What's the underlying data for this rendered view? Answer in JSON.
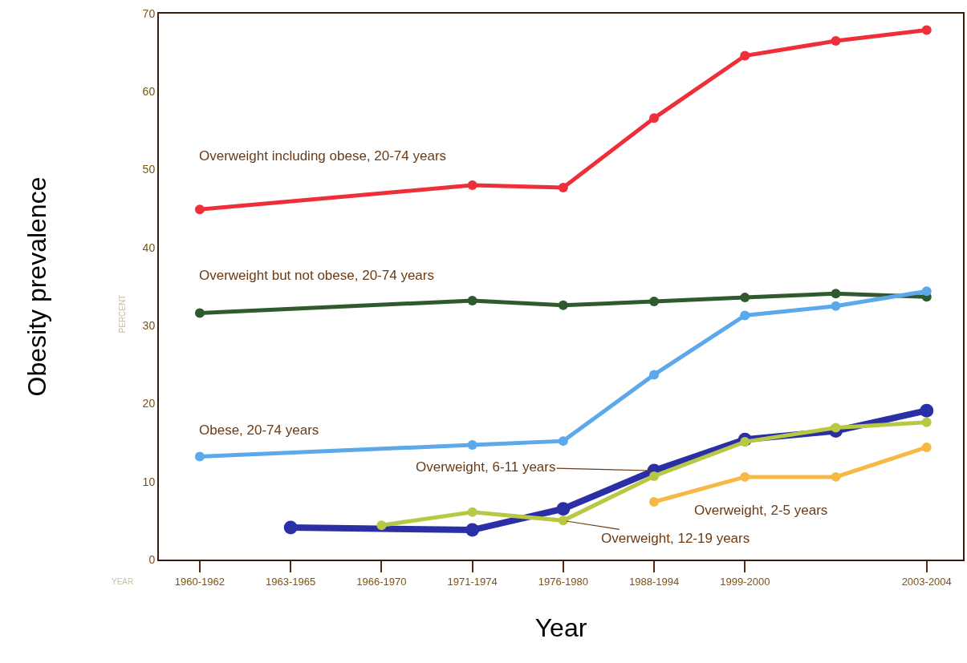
{
  "chart_data": {
    "type": "line",
    "xlabel": "Year",
    "ylabel": "Obesity prevalence",
    "annotations": [
      "PERCENT",
      "YEAR"
    ],
    "categories": [
      "1960-1962",
      "1963-1965",
      "1966-1970",
      "1971-1974",
      "1976-1980",
      "1988-1994",
      "1999-2000",
      null,
      "2003-2004"
    ],
    "ylim": [
      0,
      70
    ],
    "yticks": [
      0,
      10,
      20,
      30,
      40,
      50,
      60,
      70
    ],
    "grid": false,
    "legend": false,
    "marker": "circle",
    "line_style": "solid",
    "series": [
      {
        "name": "Overweight including obese, 20-74 years",
        "color": "#ee2f3a",
        "values": [
          44.9,
          null,
          null,
          48.0,
          47.7,
          56.6,
          64.6,
          66.5,
          67.9
        ]
      },
      {
        "name": "Overweight but not obese, 20-74 years",
        "color": "#2f5a2e",
        "values": [
          31.6,
          null,
          null,
          33.2,
          32.6,
          33.1,
          33.6,
          34.1,
          33.7
        ]
      },
      {
        "name": "Obese, 20-74 years",
        "color": "#5ba8ea",
        "values": [
          13.2,
          null,
          null,
          14.7,
          15.2,
          23.7,
          31.3,
          32.5,
          34.4
        ]
      },
      {
        "name": "Overweight, 6-11 years",
        "color": "#2a2fa6",
        "values": [
          null,
          4.1,
          null,
          3.8,
          6.5,
          11.4,
          15.4,
          16.5,
          19.1
        ]
      },
      {
        "name": "Overweight, 12-19 years",
        "color": "#b9c844",
        "values": [
          null,
          null,
          4.4,
          6.1,
          5.0,
          10.7,
          15.1,
          16.9,
          17.6
        ]
      },
      {
        "name": "Overweight, 2-5 years",
        "color": "#f8b845",
        "values": [
          null,
          null,
          null,
          null,
          null,
          7.4,
          10.6,
          10.6,
          14.4
        ]
      }
    ]
  }
}
